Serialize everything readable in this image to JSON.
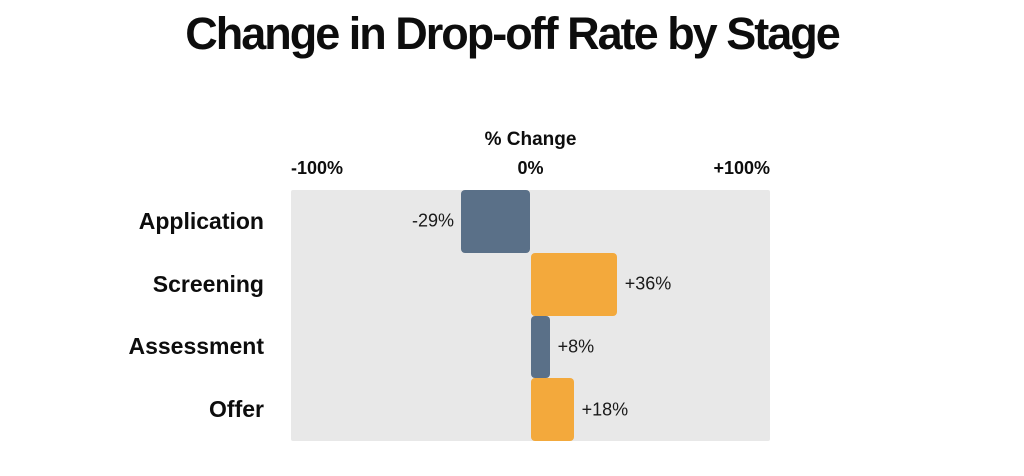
{
  "chart_data": {
    "type": "bar",
    "orientation": "horizontal",
    "title": "Change in Drop-off Rate by Stage",
    "categories": [
      "Application",
      "Screening",
      "Assessment",
      "Offer"
    ],
    "values": [
      -29,
      36,
      8,
      18
    ],
    "value_labels": [
      "-29%",
      "+36%",
      "+8%",
      "+18%"
    ],
    "bar_colors": [
      "#5A7088",
      "#F3A93C",
      "#5A7088",
      "#F3A93C"
    ],
    "axis": {
      "title": "% Change",
      "ticks": [
        "-100%",
        "0%",
        "+100%"
      ],
      "xlim": [
        -100,
        100
      ]
    },
    "plot_background": "#E8E8E8",
    "grid": false,
    "legend": false
  }
}
